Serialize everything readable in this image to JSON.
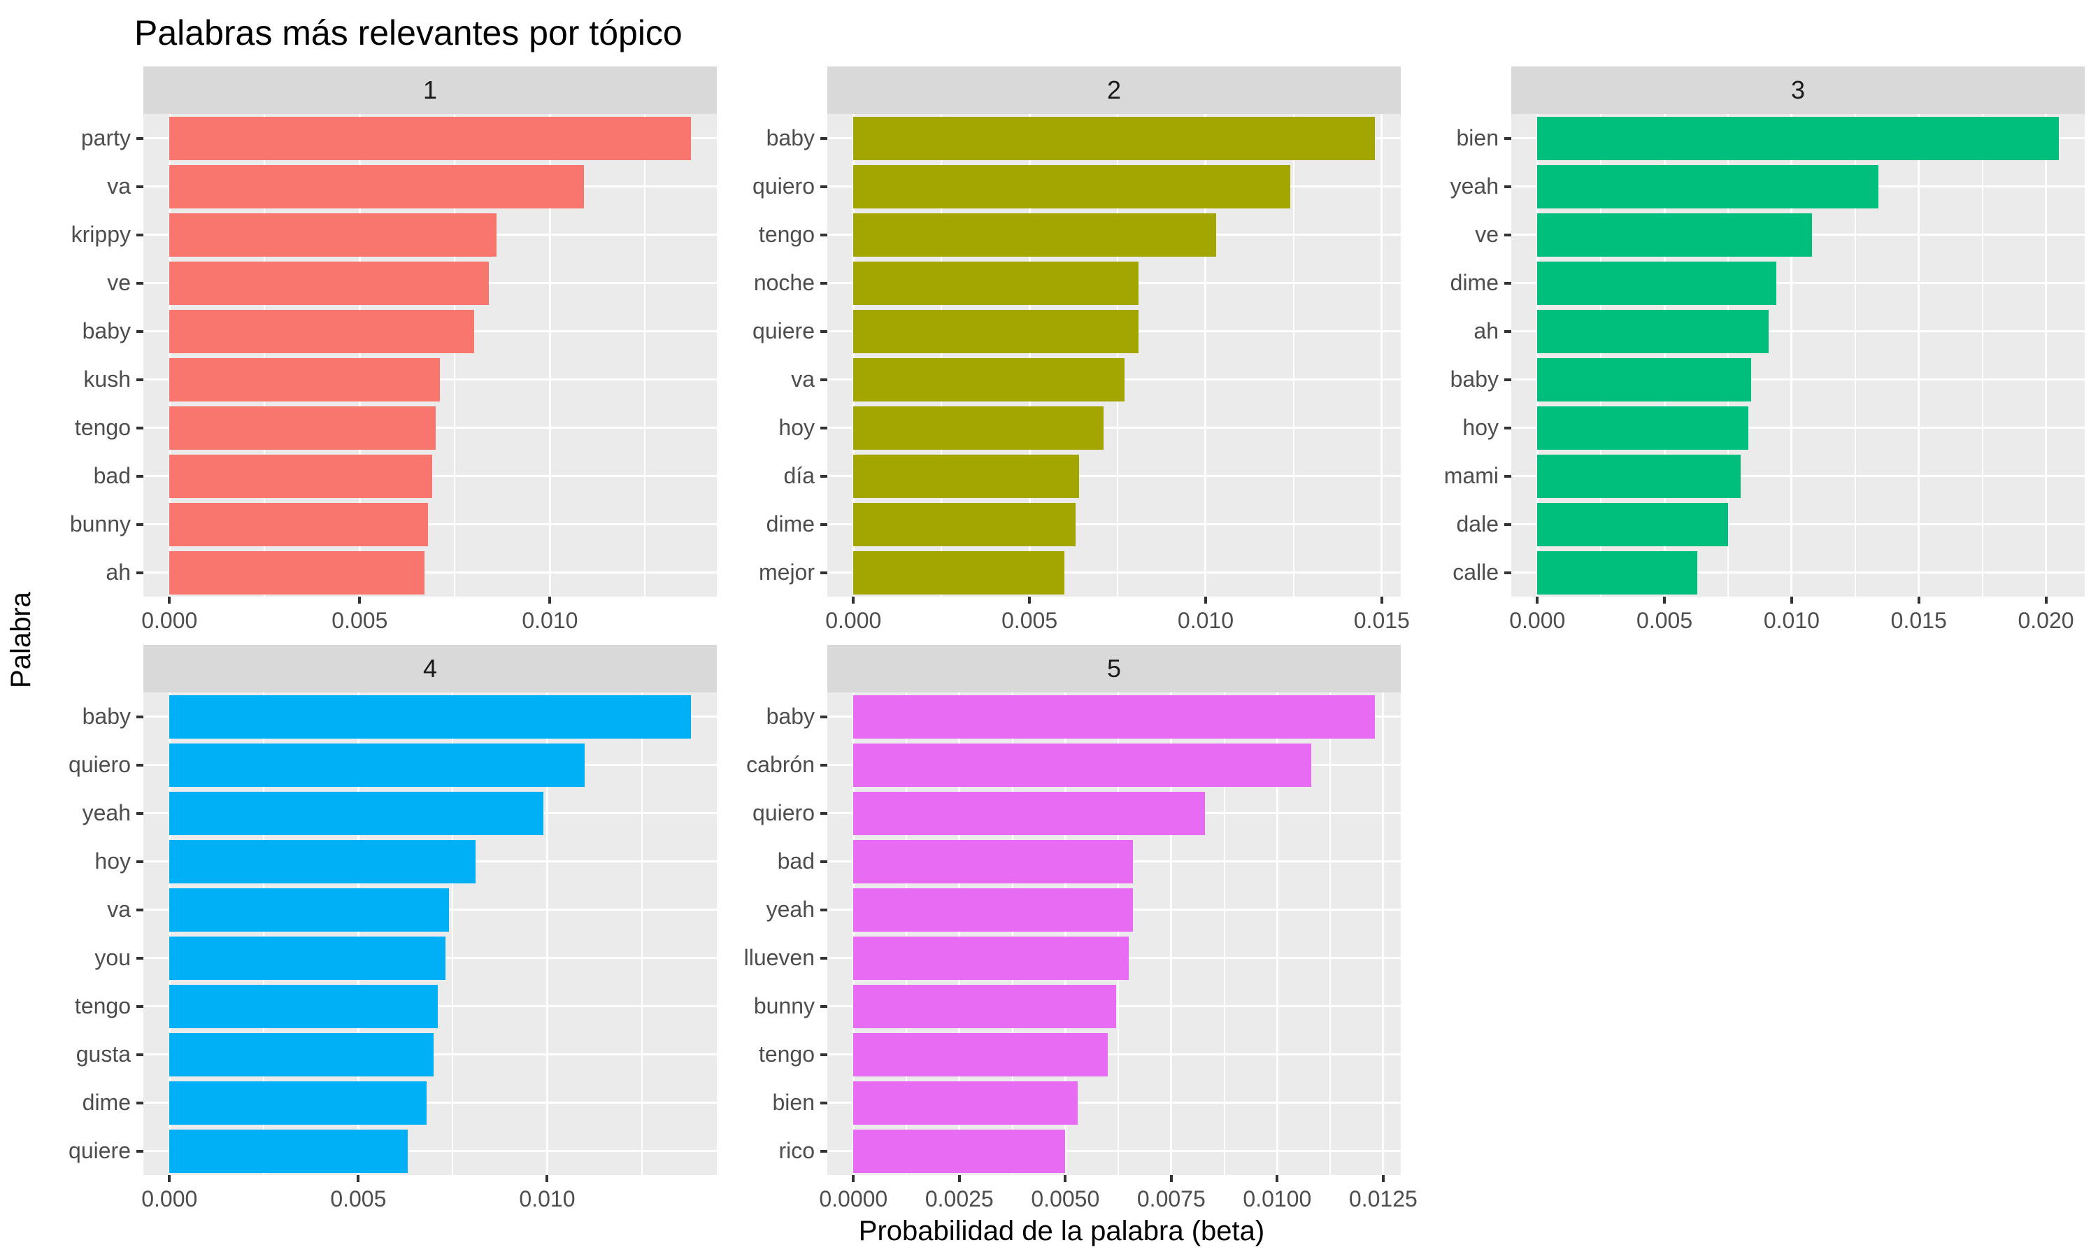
{
  "chart_data": {
    "type": "bar",
    "orientation": "horizontal",
    "title": "Palabras más relevantes por tópico",
    "xlabel": "Probabilidad de la palabra (beta)",
    "ylabel": "Palabra",
    "legend": "none",
    "grid": true,
    "style": {
      "panel_bg": "#EBEBEB",
      "strip_bg": "#D9D9D9",
      "grid_color": "#FFFFFF",
      "axis_text_color": "#4D4D4D",
      "strip_text_color": "#1A1A1A",
      "tick_mark_color": "#333333"
    },
    "facets": [
      {
        "label": "1",
        "color": "#F8766D",
        "words": [
          "party",
          "va",
          "krippy",
          "ve",
          "baby",
          "kush",
          "tengo",
          "bad",
          "bunny",
          "ah"
        ],
        "values": [
          0.0137,
          0.0109,
          0.0086,
          0.0084,
          0.008,
          0.0071,
          0.007,
          0.0069,
          0.0068,
          0.0067
        ],
        "xlim": [
          -0.000685,
          0.014385
        ],
        "ticks": [
          {
            "value": 0,
            "label": "0.000"
          },
          {
            "value": 0.005,
            "label": "0.005"
          },
          {
            "value": 0.01,
            "label": "0.010"
          }
        ],
        "minor_ticks": [
          0.0025,
          0.0075,
          0.0125
        ]
      },
      {
        "label": "2",
        "color": "#A3A500",
        "words": [
          "baby",
          "quiero",
          "tengo",
          "noche",
          "quiere",
          "va",
          "hoy",
          "día",
          "dime",
          "mejor"
        ],
        "values": [
          0.0148,
          0.0124,
          0.0103,
          0.0081,
          0.0081,
          0.0077,
          0.0071,
          0.0064,
          0.0063,
          0.006
        ],
        "xlim": [
          -0.00074,
          0.01554
        ],
        "ticks": [
          {
            "value": 0,
            "label": "0.000"
          },
          {
            "value": 0.005,
            "label": "0.005"
          },
          {
            "value": 0.01,
            "label": "0.010"
          },
          {
            "value": 0.015,
            "label": "0.015"
          }
        ],
        "minor_ticks": [
          0.0025,
          0.0075,
          0.0125
        ]
      },
      {
        "label": "3",
        "color": "#00BF7D",
        "words": [
          "bien",
          "yeah",
          "ve",
          "dime",
          "ah",
          "baby",
          "hoy",
          "mami",
          "dale",
          "calle"
        ],
        "values": [
          0.0205,
          0.0134,
          0.0108,
          0.0094,
          0.0091,
          0.0084,
          0.0083,
          0.008,
          0.0075,
          0.0063
        ],
        "xlim": [
          -0.001025,
          0.021525
        ],
        "ticks": [
          {
            "value": 0,
            "label": "0.000"
          },
          {
            "value": 0.005,
            "label": "0.005"
          },
          {
            "value": 0.01,
            "label": "0.010"
          },
          {
            "value": 0.015,
            "label": "0.015"
          },
          {
            "value": 0.02,
            "label": "0.020"
          }
        ],
        "minor_ticks": [
          0.0025,
          0.0075,
          0.0125,
          0.0175
        ]
      },
      {
        "label": "4",
        "color": "#00B0F6",
        "words": [
          "baby",
          "quiero",
          "yeah",
          "hoy",
          "va",
          "you",
          "tengo",
          "gusta",
          "dime",
          "quiere"
        ],
        "values": [
          0.0138,
          0.011,
          0.0099,
          0.0081,
          0.0074,
          0.0073,
          0.0071,
          0.007,
          0.0068,
          0.0063
        ],
        "xlim": [
          -0.00069,
          0.01449
        ],
        "ticks": [
          {
            "value": 0,
            "label": "0.000"
          },
          {
            "value": 0.005,
            "label": "0.005"
          },
          {
            "value": 0.01,
            "label": "0.010"
          }
        ],
        "minor_ticks": [
          0.0025,
          0.0075,
          0.0125
        ]
      },
      {
        "label": "5",
        "color": "#E76BF3",
        "words": [
          "baby",
          "cabrón",
          "quiero",
          "bad",
          "yeah",
          "llueven",
          "bunny",
          "tengo",
          "bien",
          "rico"
        ],
        "values": [
          0.0123,
          0.0108,
          0.0083,
          0.0066,
          0.0066,
          0.0065,
          0.0062,
          0.006,
          0.0053,
          0.005
        ],
        "xlim": [
          -0.000615,
          0.012915
        ],
        "ticks": [
          {
            "value": 0,
            "label": "0.0000"
          },
          {
            "value": 0.0025,
            "label": "0.0025"
          },
          {
            "value": 0.005,
            "label": "0.0050"
          },
          {
            "value": 0.0075,
            "label": "0.0075"
          },
          {
            "value": 0.01,
            "label": "0.0100"
          },
          {
            "value": 0.0125,
            "label": "0.0125"
          }
        ],
        "minor_ticks": [
          0.00125,
          0.00375,
          0.00625,
          0.00875,
          0.01125
        ]
      }
    ]
  }
}
